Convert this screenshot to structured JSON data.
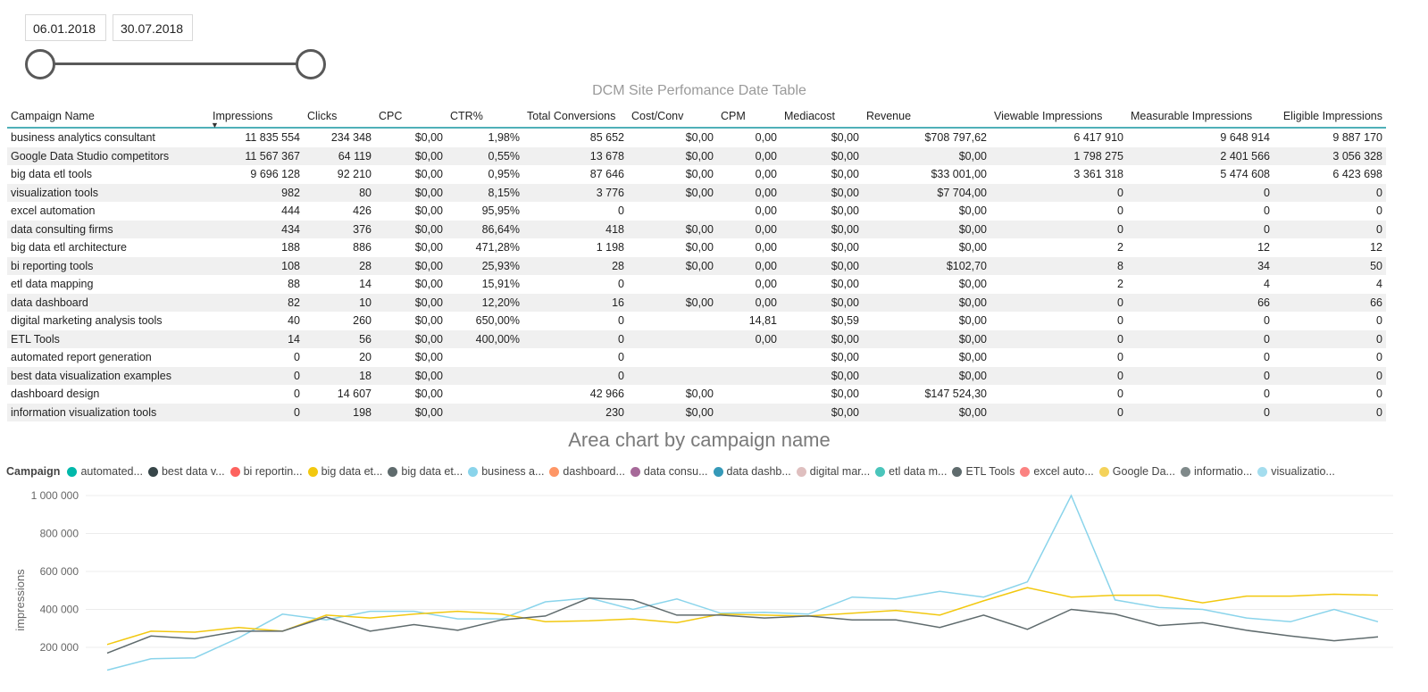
{
  "slicer": {
    "start_date": "06.01.2018",
    "end_date": "30.07.2018"
  },
  "table": {
    "title": "DCM Site Perfomance Date Table",
    "columns": [
      "Campaign Name",
      "Impressions",
      "Clicks",
      "CPC",
      "CTR%",
      "Total Conversions",
      "Cost/Conv",
      "CPM",
      "Mediacost",
      "Revenue",
      "Viewable Impressions",
      "Measurable Impressions",
      "Eligible Impressions"
    ],
    "rows": [
      [
        "business analytics consultant",
        "11 835 554",
        "234 348",
        "$0,00",
        "1,98%",
        "85 652",
        "$0,00",
        "0,00",
        "$0,00",
        "$708 797,62",
        "6 417 910",
        "9 648 914",
        "9 887 170"
      ],
      [
        "Google Data Studio competitors",
        "11 567 367",
        "64 119",
        "$0,00",
        "0,55%",
        "13 678",
        "$0,00",
        "0,00",
        "$0,00",
        "$0,00",
        "1 798 275",
        "2 401 566",
        "3 056 328"
      ],
      [
        "big data etl tools",
        "9 696 128",
        "92 210",
        "$0,00",
        "0,95%",
        "87 646",
        "$0,00",
        "0,00",
        "$0,00",
        "$33 001,00",
        "3 361 318",
        "5 474 608",
        "6 423 698"
      ],
      [
        "visualization tools",
        "982",
        "80",
        "$0,00",
        "8,15%",
        "3 776",
        "$0,00",
        "0,00",
        "$0,00",
        "$7 704,00",
        "0",
        "0",
        "0"
      ],
      [
        "excel automation",
        "444",
        "426",
        "$0,00",
        "95,95%",
        "0",
        "",
        "0,00",
        "$0,00",
        "$0,00",
        "0",
        "0",
        "0"
      ],
      [
        "data consulting firms",
        "434",
        "376",
        "$0,00",
        "86,64%",
        "418",
        "$0,00",
        "0,00",
        "$0,00",
        "$0,00",
        "0",
        "0",
        "0"
      ],
      [
        "big data etl architecture",
        "188",
        "886",
        "$0,00",
        "471,28%",
        "1 198",
        "$0,00",
        "0,00",
        "$0,00",
        "$0,00",
        "2",
        "12",
        "12"
      ],
      [
        "bi reporting tools",
        "108",
        "28",
        "$0,00",
        "25,93%",
        "28",
        "$0,00",
        "0,00",
        "$0,00",
        "$102,70",
        "8",
        "34",
        "50"
      ],
      [
        "etl data mapping",
        "88",
        "14",
        "$0,00",
        "15,91%",
        "0",
        "",
        "0,00",
        "$0,00",
        "$0,00",
        "2",
        "4",
        "4"
      ],
      [
        "data dashboard",
        "82",
        "10",
        "$0,00",
        "12,20%",
        "16",
        "$0,00",
        "0,00",
        "$0,00",
        "$0,00",
        "0",
        "66",
        "66"
      ],
      [
        "digital marketing analysis tools",
        "40",
        "260",
        "$0,00",
        "650,00%",
        "0",
        "",
        "14,81",
        "$0,59",
        "$0,00",
        "0",
        "0",
        "0"
      ],
      [
        "ETL Tools",
        "14",
        "56",
        "$0,00",
        "400,00%",
        "0",
        "",
        "0,00",
        "$0,00",
        "$0,00",
        "0",
        "0",
        "0"
      ],
      [
        "automated report generation",
        "0",
        "20",
        "$0,00",
        "",
        "0",
        "",
        "",
        "$0,00",
        "$0,00",
        "0",
        "0",
        "0"
      ],
      [
        "best data visualization examples",
        "0",
        "18",
        "$0,00",
        "",
        "0",
        "",
        "",
        "$0,00",
        "$0,00",
        "0",
        "0",
        "0"
      ],
      [
        "dashboard design",
        "0",
        "14 607",
        "$0,00",
        "",
        "42 966",
        "$0,00",
        "",
        "$0,00",
        "$147 524,30",
        "0",
        "0",
        "0"
      ],
      [
        "information visualization tools",
        "0",
        "198",
        "$0,00",
        "",
        "230",
        "$0,00",
        "",
        "$0,00",
        "$0,00",
        "0",
        "0",
        "0"
      ]
    ]
  },
  "chart": {
    "title": "Area chart by campaign name",
    "legend_title": "Campaign",
    "legend": [
      {
        "label": "automated...",
        "color": "#01b8aa"
      },
      {
        "label": "best data v...",
        "color": "#374649"
      },
      {
        "label": "bi reportin...",
        "color": "#fd625e"
      },
      {
        "label": "big data et...",
        "color": "#f2c80f"
      },
      {
        "label": "big data et...",
        "color": "#5f6b6d"
      },
      {
        "label": "business a...",
        "color": "#8ad4eb"
      },
      {
        "label": "dashboard...",
        "color": "#fe9666"
      },
      {
        "label": "data consu...",
        "color": "#a66999"
      },
      {
        "label": "data dashb...",
        "color": "#3599b8"
      },
      {
        "label": "digital mar...",
        "color": "#dfbfbf"
      },
      {
        "label": "etl data m...",
        "color": "#4ac5bb"
      },
      {
        "label": "ETL Tools",
        "color": "#5f6b6d"
      },
      {
        "label": "excel auto...",
        "color": "#fb8281"
      },
      {
        "label": "Google Da...",
        "color": "#f4d25a"
      },
      {
        "label": "informatio...",
        "color": "#7f898a"
      },
      {
        "label": "visualizatio...",
        "color": "#a4ddee"
      }
    ]
  },
  "chart_data": {
    "type": "line",
    "ylabel": "impressions",
    "ylim": [
      100000,
      1000000
    ],
    "yticks": [
      "1 000 000",
      "800 000",
      "600 000",
      "400 000",
      "200 000"
    ],
    "ytick_values": [
      1000000,
      800000,
      600000,
      400000,
      200000
    ],
    "series": [
      {
        "name": "business a...",
        "color": "#8ad4eb",
        "values": [
          80000,
          140000,
          145000,
          250000,
          375000,
          345000,
          390000,
          390000,
          350000,
          350000,
          440000,
          460000,
          400000,
          455000,
          380000,
          385000,
          375000,
          465000,
          455000,
          495000,
          465000,
          545000,
          1000000,
          450000,
          410000,
          400000,
          355000,
          335000,
          400000,
          335000
        ]
      },
      {
        "name": "Google Da...",
        "color": "#f2c80f",
        "values": [
          215000,
          285000,
          280000,
          305000,
          285000,
          370000,
          355000,
          375000,
          390000,
          375000,
          335000,
          340000,
          350000,
          330000,
          375000,
          370000,
          365000,
          380000,
          395000,
          370000,
          445000,
          515000,
          465000,
          475000,
          475000,
          435000,
          470000,
          470000,
          480000,
          475000
        ]
      },
      {
        "name": "big data et...",
        "color": "#5f6b6d",
        "values": [
          170000,
          260000,
          245000,
          285000,
          285000,
          360000,
          285000,
          320000,
          290000,
          345000,
          365000,
          460000,
          450000,
          370000,
          370000,
          355000,
          365000,
          345000,
          345000,
          305000,
          370000,
          295000,
          400000,
          375000,
          315000,
          330000,
          290000,
          260000,
          235000,
          255000
        ]
      }
    ]
  }
}
